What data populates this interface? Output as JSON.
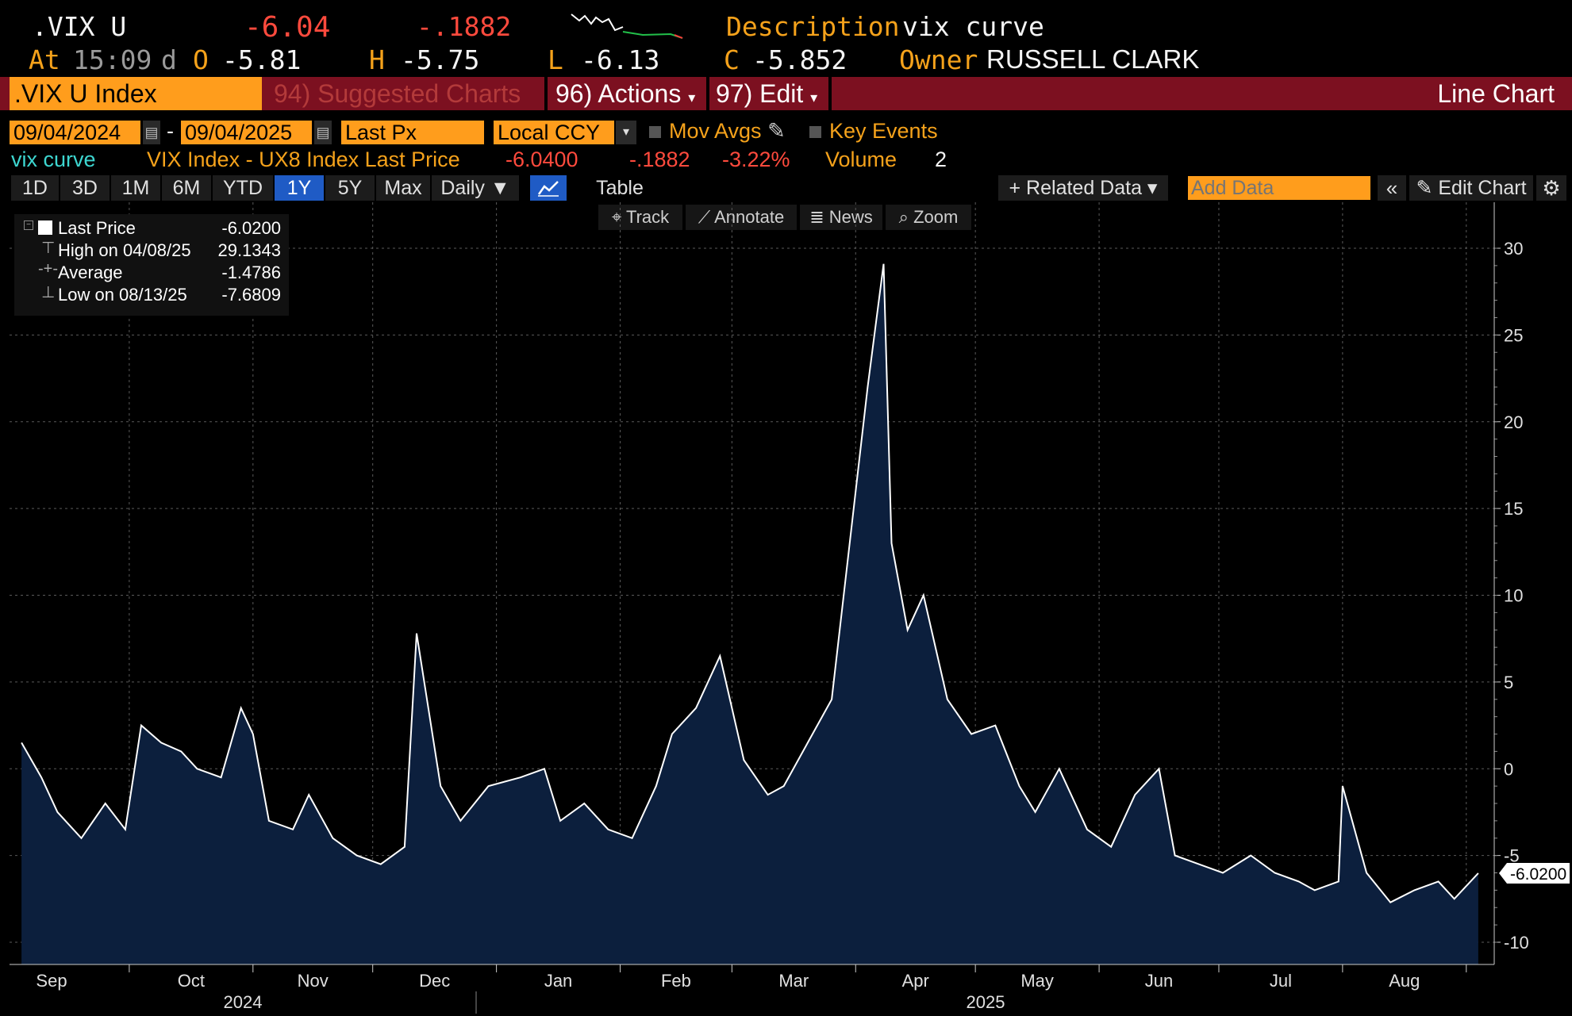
{
  "header": {
    "ticker": ".VIX U",
    "last": "-6.04",
    "change": "-.1882",
    "desc_label": "Description",
    "desc_value": "vix curve",
    "at_label": "At",
    "time": "15:09",
    "d": "d",
    "o_label": "O",
    "open": "-5.81",
    "h_label": "H",
    "high": "-5.75",
    "l_label": "L",
    "low": "-6.13",
    "c_label": "C",
    "close": "-5.852",
    "owner_label": "Owner",
    "owner": "RUSSELL CLARK"
  },
  "toolbar": {
    "security": ".VIX U Index",
    "suggested": "94) Suggested Charts",
    "actions": "96) Actions",
    "edit": "97) Edit",
    "chart_type": "Line Chart"
  },
  "controls": {
    "start_date": "09/04/2024",
    "end_date": "09/04/2025",
    "field": "Last Px",
    "currency": "Local CCY",
    "mov_avgs": "Mov Avgs",
    "key_events": "Key Events"
  },
  "series_line": {
    "name": "vix curve",
    "desc": "VIX Index - UX8 Index Last Price",
    "last": "-6.0400",
    "change": "-.1882",
    "pct": "-3.22%",
    "volume_label": "Volume",
    "volume": "2"
  },
  "periods": [
    "1D",
    "3D",
    "1M",
    "6M",
    "YTD",
    "1Y",
    "5Y",
    "Max"
  ],
  "selected_period": "1Y",
  "frequency": "Daily ▼",
  "table_label": "Table",
  "related_data": "+ Related Data ▾",
  "add_data_placeholder": "Add Data",
  "edit_chart": "Edit Chart",
  "tools": [
    "Track",
    "Annotate",
    "News",
    "Zoom"
  ],
  "legend": {
    "last_label": "Last Price",
    "last_value": "-6.0200",
    "high_label": "High on 04/08/25",
    "high_value": "29.1343",
    "avg_label": "Average",
    "avg_value": "-1.4786",
    "low_label": "Low on 08/13/25",
    "low_value": "-7.6809"
  },
  "colors": {
    "accent": "#ff9d1c",
    "toolbar": "#7c1020",
    "line": "#ffffff",
    "fill": "#0c1f3d"
  },
  "chart_data": {
    "type": "area",
    "x_months": [
      "Sep",
      "Oct",
      "Nov",
      "Dec",
      "Jan",
      "Feb",
      "Mar",
      "Apr",
      "May",
      "Jun",
      "Jul",
      "Aug"
    ],
    "x_years": [
      "2024",
      "2025"
    ],
    "yticks": [
      30,
      25,
      20,
      15,
      10,
      5,
      0,
      -5,
      -10
    ],
    "ylim": [
      -11,
      32
    ],
    "last_label": "-6.0200",
    "x": [
      "2024-09-04",
      "2024-09-09",
      "2024-09-13",
      "2024-09-19",
      "2024-09-25",
      "2024-09-30",
      "2024-10-04",
      "2024-10-09",
      "2024-10-14",
      "2024-10-18",
      "2024-10-24",
      "2024-10-29",
      "2024-11-01",
      "2024-11-05",
      "2024-11-11",
      "2024-11-15",
      "2024-11-21",
      "2024-11-27",
      "2024-12-03",
      "2024-12-09",
      "2024-12-12",
      "2024-12-18",
      "2024-12-23",
      "2024-12-30",
      "2025-01-07",
      "2025-01-13",
      "2025-01-17",
      "2025-01-23",
      "2025-01-29",
      "2025-02-04",
      "2025-02-10",
      "2025-02-14",
      "2025-02-20",
      "2025-02-26",
      "2025-03-04",
      "2025-03-10",
      "2025-03-14",
      "2025-03-20",
      "2025-03-26",
      "2025-04-01",
      "2025-04-04",
      "2025-04-08",
      "2025-04-10",
      "2025-04-14",
      "2025-04-18",
      "2025-04-24",
      "2025-04-30",
      "2025-05-06",
      "2025-05-12",
      "2025-05-16",
      "2025-05-22",
      "2025-05-29",
      "2025-06-04",
      "2025-06-10",
      "2025-06-16",
      "2025-06-20",
      "2025-06-26",
      "2025-07-02",
      "2025-07-09",
      "2025-07-15",
      "2025-07-21",
      "2025-07-25",
      "2025-07-31",
      "2025-08-01",
      "2025-08-07",
      "2025-08-13",
      "2025-08-19",
      "2025-08-25",
      "2025-08-29",
      "2025-09-04"
    ],
    "values": [
      1.5,
      -0.5,
      -2.5,
      -4,
      -2,
      -3.5,
      2.5,
      1.5,
      1,
      0,
      -0.5,
      3.5,
      2,
      -3,
      -3.5,
      -1.5,
      -4,
      -5,
      -5.5,
      -4.5,
      7.8,
      -1,
      -3,
      -1,
      -0.5,
      0,
      -3,
      -2,
      -3.5,
      -4,
      -1,
      2,
      3.5,
      6.5,
      0.5,
      -1.5,
      -1,
      1.5,
      4,
      16,
      22,
      29.1,
      13,
      8,
      10,
      4,
      2,
      2.5,
      -1,
      -2.5,
      0,
      -3.5,
      -4.5,
      -1.5,
      0,
      -5,
      -5.5,
      -6,
      -5,
      -6,
      -6.5,
      -7,
      -6.5,
      -1,
      -6,
      -7.7,
      -7,
      -6.5,
      -7.5,
      -6.02
    ]
  }
}
